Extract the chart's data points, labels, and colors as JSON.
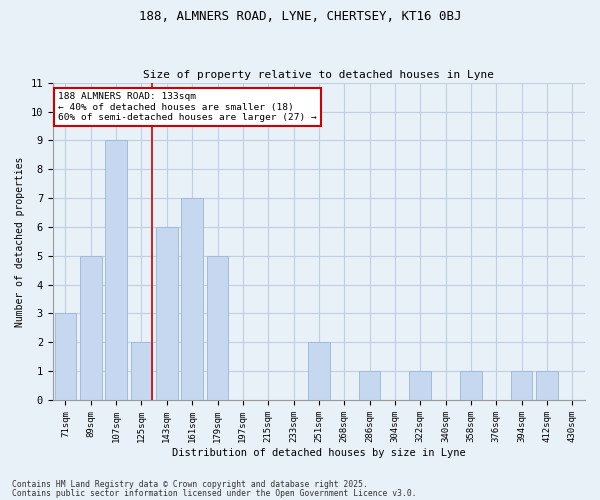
{
  "title1": "188, ALMNERS ROAD, LYNE, CHERTSEY, KT16 0BJ",
  "title2": "Size of property relative to detached houses in Lyne",
  "xlabel": "Distribution of detached houses by size in Lyne",
  "ylabel": "Number of detached properties",
  "categories": [
    "71sqm",
    "89sqm",
    "107sqm",
    "125sqm",
    "143sqm",
    "161sqm",
    "179sqm",
    "197sqm",
    "215sqm",
    "233sqm",
    "251sqm",
    "268sqm",
    "286sqm",
    "304sqm",
    "322sqm",
    "340sqm",
    "358sqm",
    "376sqm",
    "394sqm",
    "412sqm",
    "430sqm"
  ],
  "values": [
    3,
    5,
    9,
    2,
    6,
    7,
    5,
    0,
    0,
    0,
    2,
    0,
    1,
    0,
    1,
    0,
    1,
    0,
    1,
    1,
    0
  ],
  "bar_color": "#c5d8f0",
  "bar_edgecolor": "#a0bcda",
  "grid_color": "#c0d0e0",
  "bg_color": "#e8f0f8",
  "property_line_x": "125sqm",
  "annotation_text": "188 ALMNERS ROAD: 133sqm\n← 40% of detached houses are smaller (18)\n60% of semi-detached houses are larger (27) →",
  "annotation_box_color": "#ffffff",
  "annotation_box_edgecolor": "#cc0000",
  "red_line_color": "#cc0000",
  "ylim": [
    0,
    11
  ],
  "yticks": [
    0,
    1,
    2,
    3,
    4,
    5,
    6,
    7,
    8,
    9,
    10,
    11
  ],
  "footer1": "Contains HM Land Registry data © Crown copyright and database right 2025.",
  "footer2": "Contains public sector information licensed under the Open Government Licence v3.0."
}
